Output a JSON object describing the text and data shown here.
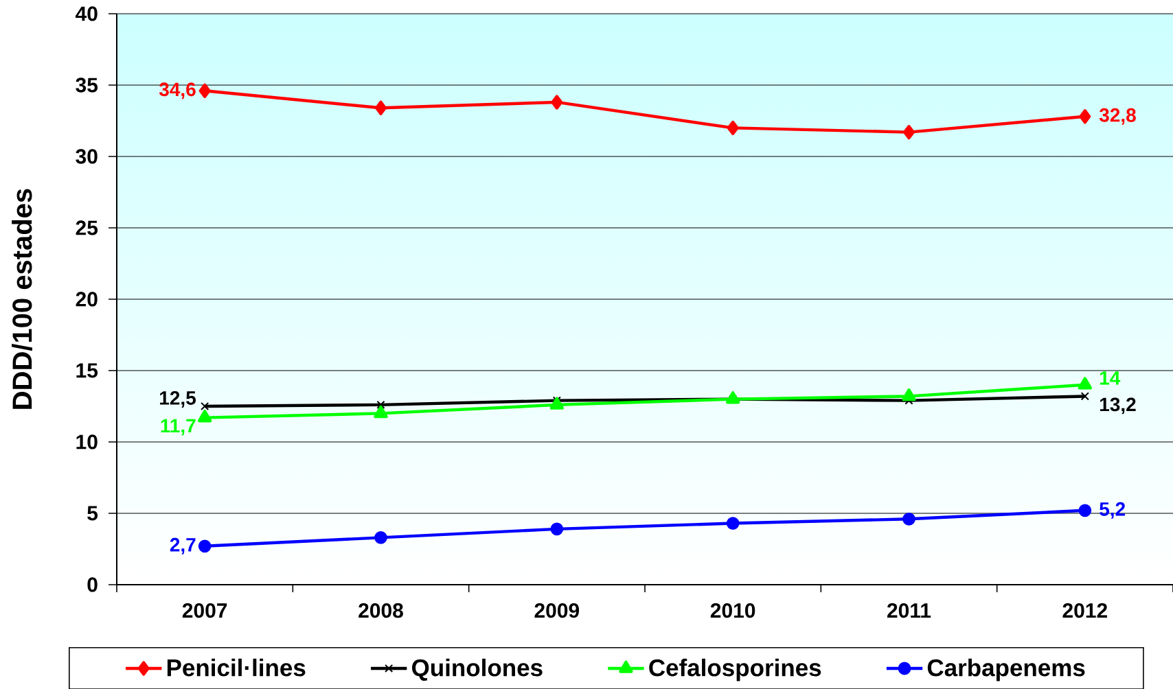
{
  "chart_data": {
    "type": "line",
    "ylabel": "DDD/100 estades",
    "categories": [
      "2007",
      "2008",
      "2009",
      "2010",
      "2011",
      "2012"
    ],
    "series": [
      {
        "name": "Penicil·lines",
        "color": "#ff0000",
        "marker": "diamond",
        "values": [
          34.6,
          33.4,
          33.8,
          32.0,
          31.7,
          32.8
        ],
        "value_labels": [
          "34,6",
          null,
          null,
          null,
          null,
          "32,8"
        ]
      },
      {
        "name": "Quinolones",
        "color": "#000000",
        "marker": "cross",
        "values": [
          12.5,
          12.6,
          12.9,
          13.0,
          12.9,
          13.2
        ],
        "value_labels": [
          "12,5",
          null,
          null,
          null,
          null,
          "13,2"
        ]
      },
      {
        "name": "Cefalosporines",
        "color": "#00ff00",
        "marker": "triangle",
        "values": [
          11.7,
          12.0,
          12.6,
          13.0,
          13.2,
          14.0
        ],
        "value_labels": [
          "11,7",
          null,
          null,
          null,
          null,
          "14"
        ]
      },
      {
        "name": "Carbapenems",
        "color": "#0000ff",
        "marker": "circle",
        "values": [
          2.7,
          3.3,
          3.9,
          4.3,
          4.6,
          5.2
        ],
        "value_labels": [
          "2,7",
          null,
          null,
          null,
          null,
          "5,2"
        ]
      }
    ],
    "ylim": [
      0,
      40
    ],
    "yticks": [
      0,
      5,
      10,
      15,
      20,
      25,
      30,
      35,
      40
    ],
    "grid": "y",
    "legend": "bottom"
  }
}
